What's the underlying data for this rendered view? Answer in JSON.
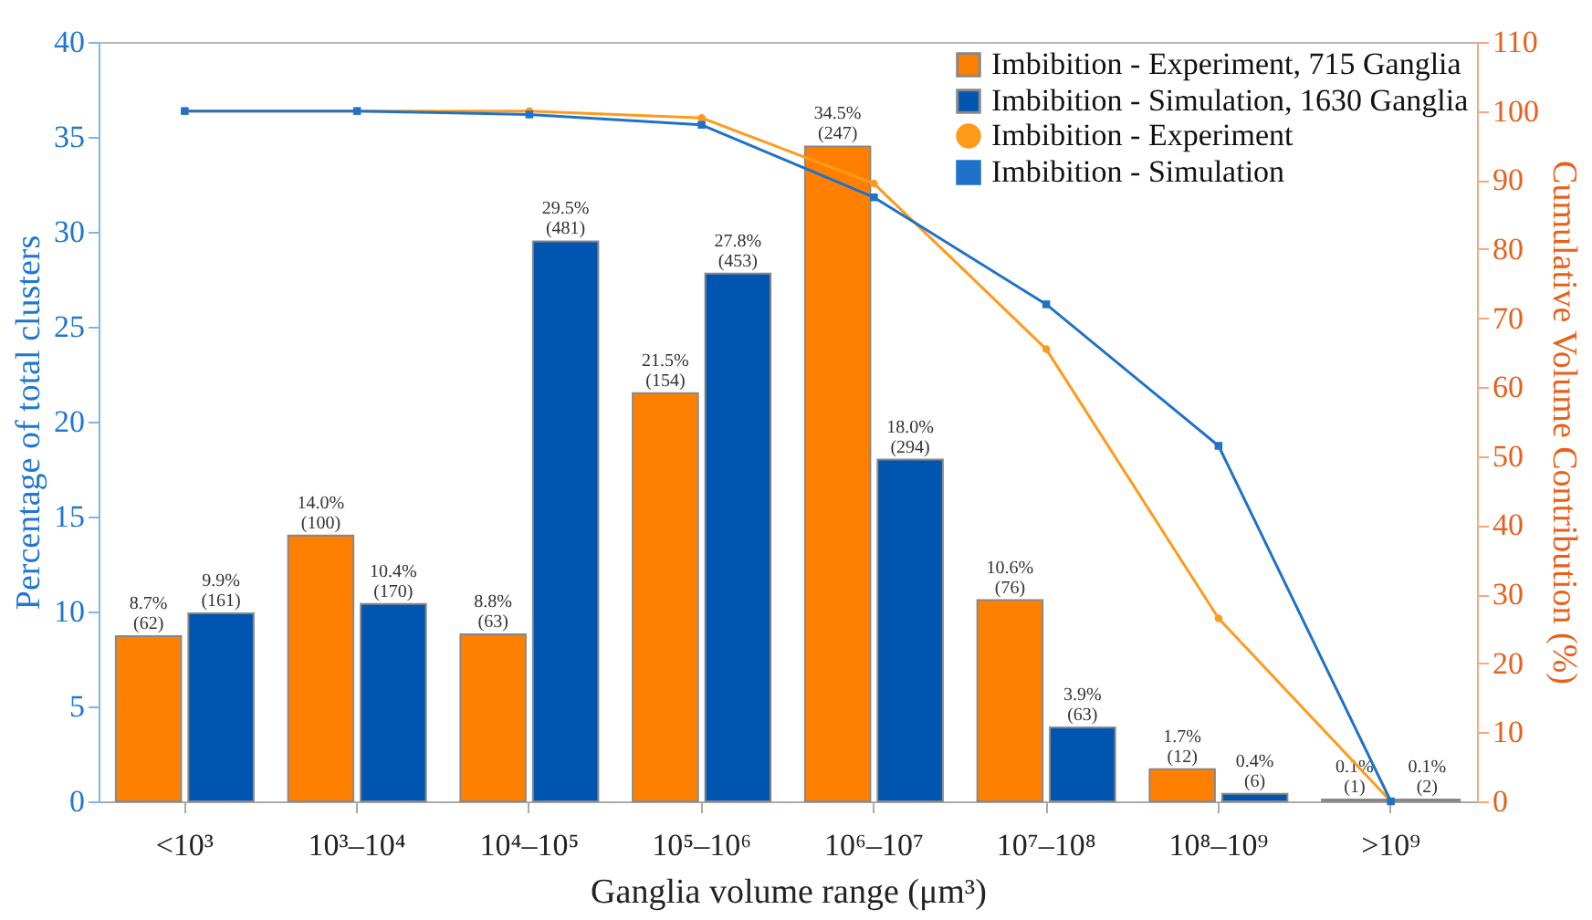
{
  "chart_data": {
    "type": "bar",
    "xlabel": "Ganglia volume range (μm³)",
    "ylabel": "Percentage of total clusters",
    "y2label": "Cumulative Volume Contribution (%)",
    "categories": [
      "<10³",
      "10³–10⁴",
      "10⁴–10⁵",
      "10⁵–10⁶",
      "10⁶–10⁷",
      "10⁷–10⁸",
      "10⁸–10⁹",
      ">10⁹"
    ],
    "series": [
      {
        "name": "Imbibition - Experiment, 715 Ganglia",
        "type": "bar",
        "color": "#ff8000",
        "values": [
          8.7,
          14.0,
          8.8,
          21.5,
          34.5,
          10.6,
          1.7,
          0.1
        ],
        "value_labels": [
          "8.7%\n(62)",
          "14.0%\n(100)",
          "8.8%\n(63)",
          "21.5%\n(154)",
          "34.5%\n(247)",
          "10.6%\n(76)",
          "1.7%\n(12)",
          "0.1%\n(1)"
        ]
      },
      {
        "name": "Imbibition - Simulation, 1630 Ganglia",
        "type": "bar",
        "color": "#0055b0",
        "values": [
          9.9,
          10.4,
          29.5,
          27.8,
          18.0,
          3.9,
          0.4,
          0.1
        ],
        "value_labels": [
          "9.9%\n(161)",
          "10.4%\n(170)",
          "29.5%\n(481)",
          "27.8%\n(453)",
          "18.0%\n(294)",
          "3.9%\n(63)",
          "0.4%\n(6)",
          "0.1%\n(2)"
        ]
      },
      {
        "name": "Imbibition - Experiment",
        "type": "line",
        "axis": "y2",
        "marker": "circle",
        "color": "#ff9a1a",
        "values": [
          100,
          100,
          100,
          99,
          89.5,
          65.5,
          26.5,
          0
        ]
      },
      {
        "name": "Imbibition - Simulation",
        "type": "line",
        "axis": "y2",
        "marker": "square",
        "color": "#1f72c8",
        "values": [
          100,
          100,
          99.5,
          98,
          87.5,
          72,
          51.5,
          0
        ]
      }
    ],
    "ylim": [
      0,
      40
    ],
    "yticks": [
      0,
      5,
      10,
      15,
      20,
      25,
      30,
      35,
      40
    ],
    "y2lim": [
      0,
      110
    ],
    "y2ticks": [
      0,
      10,
      20,
      30,
      40,
      50,
      60,
      70,
      80,
      90,
      100,
      110
    ],
    "legend": "top right",
    "grid": false
  }
}
